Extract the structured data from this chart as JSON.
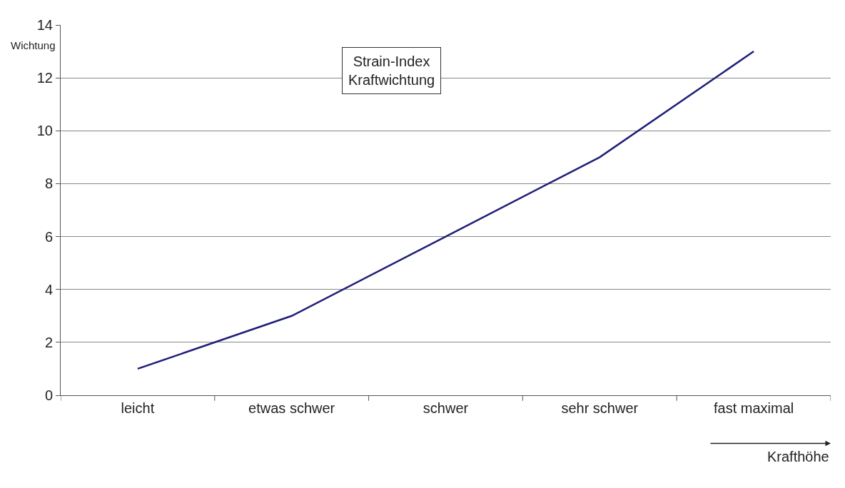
{
  "chart_data": {
    "type": "line",
    "title": "Strain-Index\nKraftwichtung",
    "ylabel": "Wichtung",
    "xlabel": "Krafthöhe",
    "categories": [
      "leicht",
      "etwas schwer",
      "schwer",
      "sehr schwer",
      "fast maximal"
    ],
    "series": [
      {
        "color": "#1f1f78",
        "values": [
          1,
          3,
          6,
          9,
          13
        ]
      }
    ],
    "ylim": [
      0,
      14
    ],
    "yticks": [
      0,
      2,
      4,
      6,
      8,
      10,
      12,
      14
    ],
    "grid": "y",
    "marker": "none",
    "line_style": "solid"
  }
}
